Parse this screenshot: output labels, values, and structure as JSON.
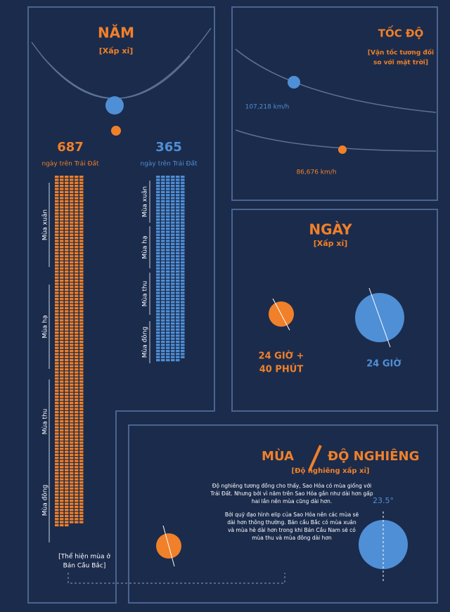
{
  "year": {
    "title": "NĂM",
    "subtitle": "[Xấp xỉ]",
    "mars": {
      "days": 687,
      "unit": "ngày trên Trái Đất",
      "seasons": [
        "Mùa xuân",
        "Mùa hạ",
        "Mùa thu",
        "Mùa đông"
      ]
    },
    "earth": {
      "days": 365,
      "unit": "ngày trên Trái Đất",
      "seasons": [
        "Mùa xuân",
        "Mùa hạ",
        "Mùa thu",
        "Mùa đông"
      ]
    },
    "note": [
      "[Thể hiện mùa ở",
      "Bán Cầu Bắc]"
    ]
  },
  "speed": {
    "title": "TỐC ĐỘ",
    "subtitle": [
      "[Vận tốc tương đối",
      "so với mặt trời]"
    ],
    "earth": "107,218 km/h",
    "mars": "86,676 km/h"
  },
  "day": {
    "title": "NGÀY",
    "subtitle": "[Xấp xỉ]",
    "mars": [
      "24 GIỜ +",
      "40 PHÚT"
    ],
    "earth": "24 GIỜ"
  },
  "tilt": {
    "title": "ĐỘ NGHIÊNG",
    "title2": "MÙA",
    "subtitle": "[Độ nghiêng xấp xỉ]",
    "earth_tilt": "23.5°",
    "paragraphs": [
      [
        "Độ nghiêng tương đồng cho thấy, Sao Hỏa có mùa giống với",
        "Trái Đất. Nhưng bởi vì năm trên Sao Hỏa gần như dài hơn gấp",
        "hai lần nên mùa cũng dài hơn."
      ],
      [
        "Bởi quỹ đạo hình elip của Sao Hỏa nên các mùa sẽ",
        "dài hơn thông thường. Bán cầu Bắc có mùa xuân",
        "và mùa hè dài hơn trong khi Bán Cầu Nam sẽ có",
        "mùa thu và mùa đông dài hơn"
      ]
    ]
  }
}
